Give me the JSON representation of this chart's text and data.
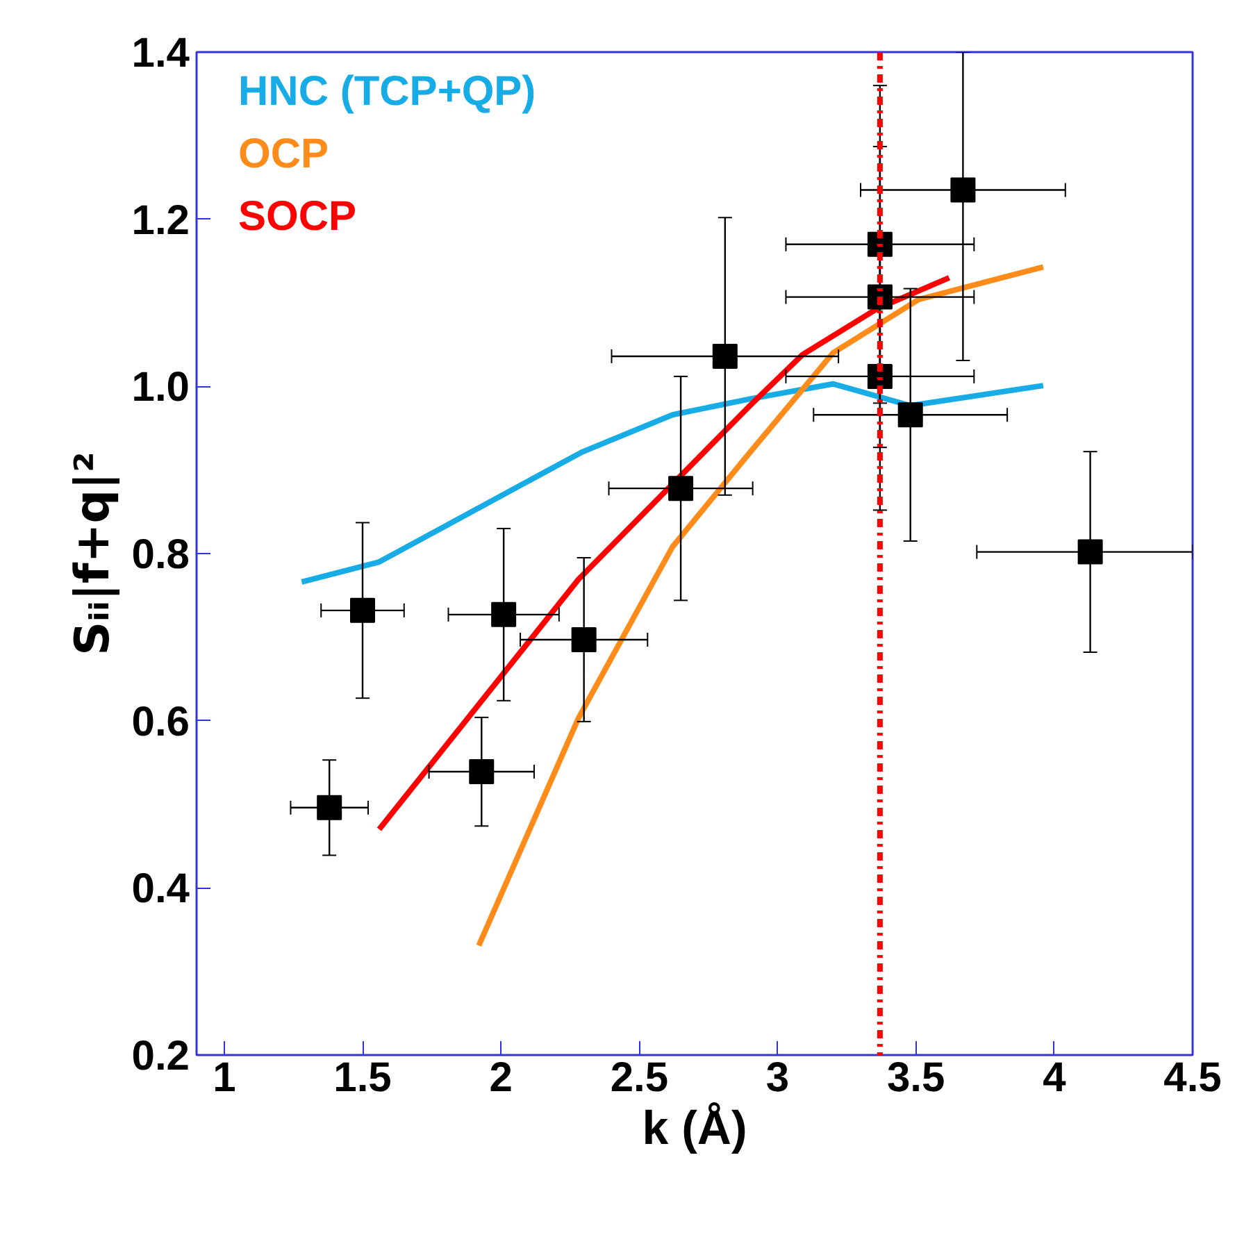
{
  "chart_data": {
    "type": "line",
    "xlabel": "k (Å)",
    "ylabel": "Sᵢᵢ|f+q|²",
    "xlim": [
      0.9,
      4.5
    ],
    "xticks": [
      1,
      1.5,
      2,
      2.5,
      3,
      3.5,
      4,
      4.5
    ],
    "ylim": [
      0.2,
      1.4
    ],
    "yticks": [
      {
        "value": 0.2,
        "label": "0.2"
      },
      {
        "value": 0.4,
        "label": "0.4"
      },
      {
        "value": 0.6,
        "label": "0.6"
      },
      {
        "value": 0.8,
        "label": "0.8"
      },
      {
        "value": 1.0,
        "label": "1.0"
      },
      {
        "value": 1.2,
        "label": "1.2"
      },
      {
        "value": 1.4,
        "label": "1.4"
      }
    ],
    "grid": false,
    "legend": "top left",
    "line_style": "solid",
    "series": [
      {
        "name": "HNC (TCP+QP)",
        "color": "#17ace6",
        "x": [
          1.28,
          1.56,
          2.0,
          2.29,
          2.62,
          2.9,
          3.2,
          3.48,
          3.96
        ],
        "values": [
          0.766,
          0.79,
          0.869,
          0.921,
          0.966,
          0.985,
          1.003,
          0.977,
          1.001
        ]
      },
      {
        "name": "OCP",
        "color": "#ff8c1a",
        "x": [
          1.92,
          2.28,
          2.62,
          2.9,
          3.2,
          3.51,
          3.96
        ],
        "values": [
          0.331,
          0.603,
          0.808,
          0.921,
          1.04,
          1.104,
          1.143
        ]
      },
      {
        "name": "SOCP",
        "color": "#ff0000",
        "x": [
          1.56,
          2.28,
          2.9,
          3.09,
          3.36,
          3.62
        ],
        "values": [
          0.47,
          0.769,
          0.977,
          1.038,
          1.093,
          1.13
        ]
      },
      {
        "type": "scatter",
        "marker": "square",
        "color": "#000000",
        "x": [
          1.38,
          1.5,
          1.93,
          2.01,
          2.3,
          2.65,
          2.81,
          3.37,
          3.37,
          3.37,
          3.67,
          3.48,
          4.13
        ],
        "values": [
          0.496,
          0.732,
          0.539,
          0.727,
          0.697,
          0.878,
          1.036,
          1.012,
          1.17,
          1.107,
          1.235,
          0.966,
          0.802
        ],
        "errors": [
          0.057,
          0.105,
          0.065,
          0.103,
          0.098,
          0.134,
          0.166,
          0.16,
          0.19,
          0.18,
          [
            1.031,
            1.4
          ],
          0.151,
          0.12
        ],
        "xerrors": [
          0.14,
          0.15,
          0.19,
          0.2,
          0.23,
          0.26,
          0.41,
          0.34,
          0.34,
          0.34,
          0.37,
          0.35,
          [
            3.72,
            4.5
          ]
        ]
      }
    ],
    "ref_lines": [
      {
        "axis": "x",
        "value": 3.37,
        "color": "#ff0000",
        "line_style": "dashdot"
      }
    ]
  }
}
